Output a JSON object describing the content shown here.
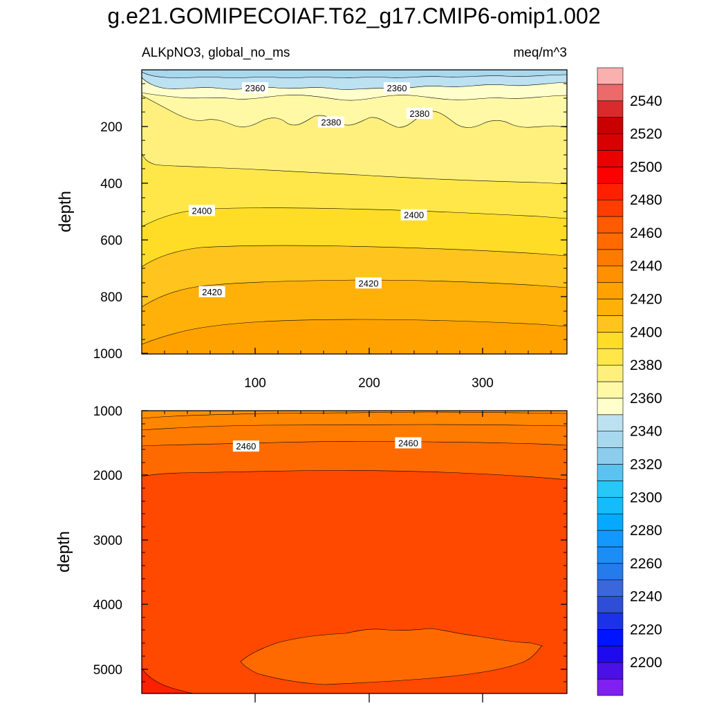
{
  "title": "g.e21.GOMIPECOIAF.T62_g17.CMIP6-omip1.002",
  "subtitle_left": "ALKpNO3, global_no_ms",
  "subtitle_right": "meq/m^3",
  "colorbar": {
    "colors": [
      "#7f1ff0",
      "#4b10e6",
      "#1f0aef",
      "#0015ff",
      "#1a33e8",
      "#2e4ed8",
      "#3a68db",
      "#257bea",
      "#1c8df5",
      "#1298ff",
      "#05a9ff",
      "#14bdf9",
      "#25c8f6",
      "#5bc3ef",
      "#8ccdee",
      "#a8d8ee",
      "#bce1f1",
      "#ffffcc",
      "#fff9a6",
      "#fff07e",
      "#ffe74a",
      "#ffdd26",
      "#ffc41d",
      "#ffb10a",
      "#ffa200",
      "#ff9000",
      "#ff7b00",
      "#ff6a00",
      "#ff5a00",
      "#ff3d00",
      "#ff2000",
      "#ff0000",
      "#ec0000",
      "#d80000",
      "#c80000",
      "#d92b2b",
      "#ec6a6a",
      "#fbb0b0"
    ],
    "tick_labels": [
      "2200",
      "2220",
      "2240",
      "2260",
      "2280",
      "2300",
      "2320",
      "2340",
      "2360",
      "2380",
      "2400",
      "2420",
      "2440",
      "2460",
      "2480",
      "2500",
      "2520",
      "2540"
    ]
  },
  "chart_data": [
    {
      "type": "contour",
      "panel": "upper",
      "ylabel": "depth",
      "xlim": [
        0,
        375
      ],
      "ylim": [
        1000,
        20
      ],
      "x_ticks": [
        "100",
        "200",
        "300"
      ],
      "y_ticks": [
        "200",
        "400",
        "600",
        "800",
        "1000"
      ],
      "contour_levels": [
        2355,
        2360,
        2365,
        2370,
        2375,
        2380,
        2385,
        2390,
        2395,
        2400,
        2405,
        2410,
        2415,
        2420,
        2425
      ],
      "contour_labels": [
        {
          "text": "2360",
          "x": 100,
          "depth": 82
        },
        {
          "text": "2360",
          "x": 225,
          "depth": 82
        },
        {
          "text": "2380",
          "x": 167,
          "depth": 200
        },
        {
          "text": "2380",
          "x": 245,
          "depth": 170
        },
        {
          "text": "2400",
          "x": 53,
          "depth": 505
        },
        {
          "text": "2400",
          "x": 240,
          "depth": 520
        },
        {
          "text": "2420",
          "x": 62,
          "depth": 785
        },
        {
          "text": "2420",
          "x": 200,
          "depth": 755
        }
      ]
    },
    {
      "type": "contour",
      "panel": "lower",
      "ylabel": "depth",
      "xlim": [
        0,
        375
      ],
      "ylim": [
        5400,
        1000
      ],
      "x_ticks": [
        "100",
        "200",
        "300"
      ],
      "y_ticks": [
        "1000",
        "2000",
        "3000",
        "4000",
        "5000"
      ],
      "contour_levels": [
        2440,
        2450,
        2460,
        2470,
        2480,
        2490
      ],
      "contour_labels": [
        {
          "text": "2460",
          "x": 92,
          "depth": 1550
        },
        {
          "text": "2460",
          "x": 235,
          "depth": 1500
        }
      ]
    }
  ]
}
